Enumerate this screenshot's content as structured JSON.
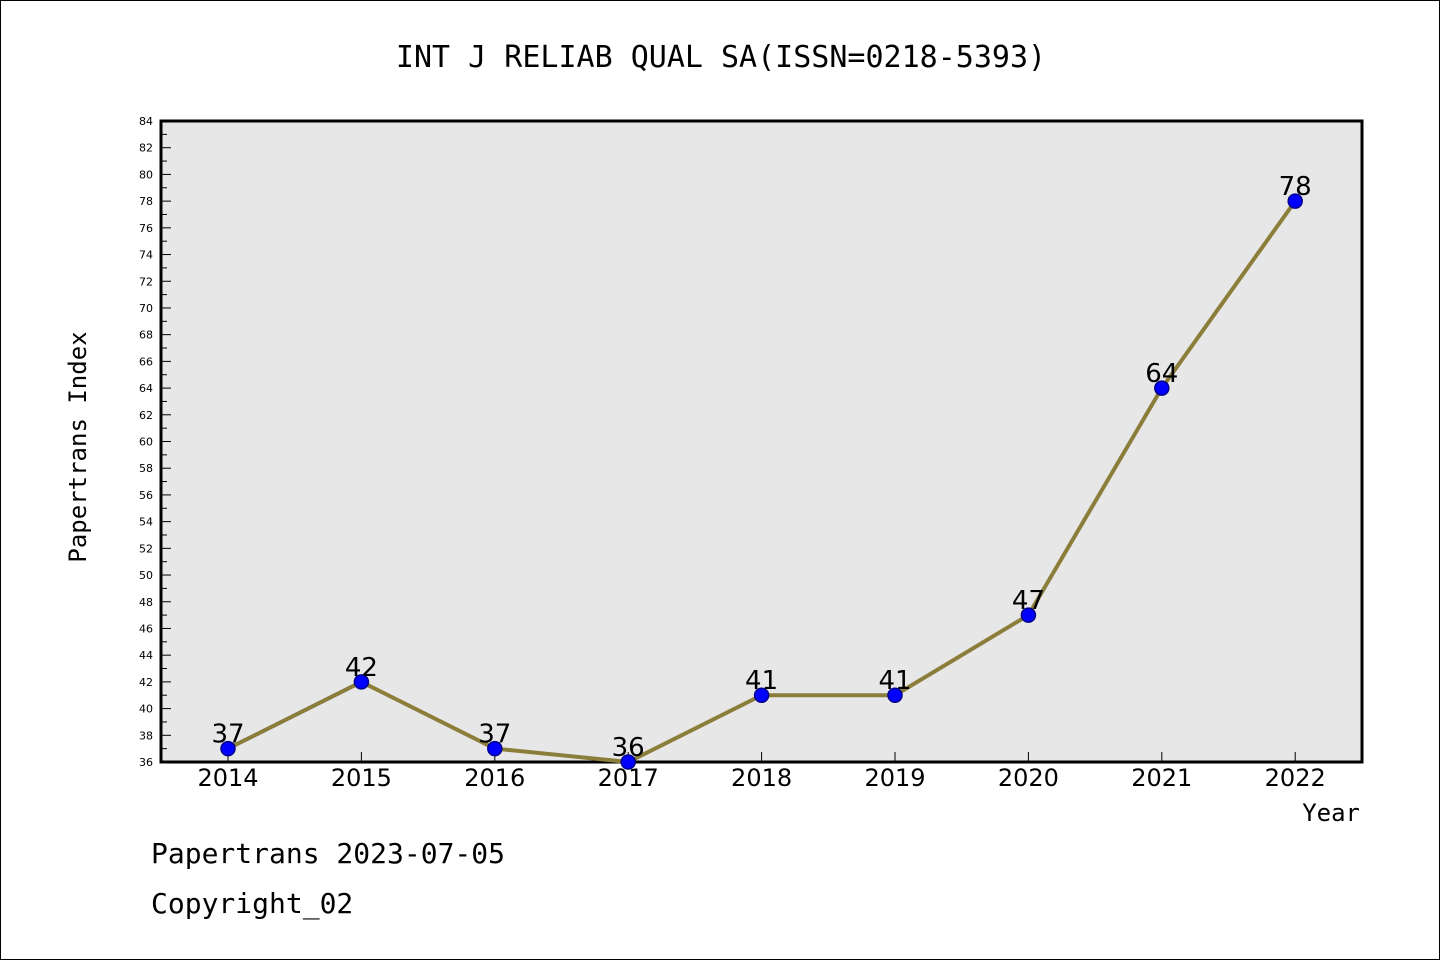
{
  "chart_data": {
    "type": "line",
    "title": "INT J RELIAB QUAL SA(ISSN=0218-5393)",
    "xlabel": "Year",
    "ylabel": "Papertrans Index",
    "categories": [
      "2014",
      "2015",
      "2016",
      "2017",
      "2018",
      "2019",
      "2020",
      "2021",
      "2022"
    ],
    "series": [
      {
        "values": [
          37,
          42,
          37,
          36,
          41,
          41,
          47,
          64,
          78
        ]
      }
    ],
    "data_labels": [
      "37",
      "42",
      "37",
      "36",
      "41",
      "41",
      "47",
      "64",
      "78"
    ],
    "ylim": [
      36,
      84
    ],
    "y_major_ticks": [
      "36",
      "38",
      "40",
      "42",
      "44",
      "46",
      "48",
      "50",
      "52",
      "54",
      "56",
      "58",
      "60",
      "62",
      "64",
      "66",
      "68",
      "70",
      "72",
      "74",
      "76",
      "78",
      "80",
      "82",
      "84"
    ],
    "grid": false,
    "legend": "none",
    "colors": {
      "line": "#8b7d3a",
      "marker": "#0000ff",
      "marker_edge": "#00008b",
      "plot_background": "#e7e7e7",
      "axes": "#000000"
    }
  },
  "footer": {
    "line1": "Papertrans 2023-07-05",
    "line2": "Copyright_02"
  }
}
